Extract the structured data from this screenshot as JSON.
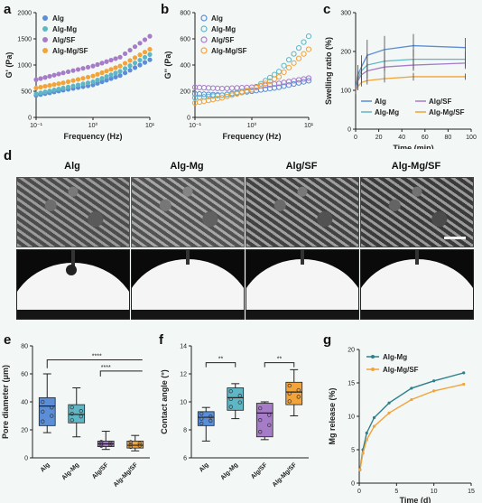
{
  "panels": {
    "a": "a",
    "b": "b",
    "c": "c",
    "d": "d",
    "e": "e",
    "f": "f",
    "g": "g"
  },
  "colors": {
    "Alg": "#5b8ed6",
    "Alg-Mg": "#5fb7c6",
    "Alg/SF": "#a67cc9",
    "Alg-Mg/SF": "#f2a33a",
    "g_Alg-Mg": "#2e7f8c",
    "g_Alg-Mg/SF": "#f2a33a"
  },
  "chart_data": [
    {
      "id": "a",
      "type": "scatter",
      "xlabel": "Frequency (Hz)",
      "ylabel": "G' (Pa)",
      "xscale": "log",
      "xlim": [
        0.1,
        10
      ],
      "ylim": [
        0,
        2000
      ],
      "xticks": [
        "10⁻¹",
        "10⁰",
        "10¹"
      ],
      "yticks": [
        "0",
        "500",
        "1000",
        "1500",
        "2000"
      ],
      "legend": "top-left",
      "series": [
        {
          "name": "Alg",
          "x": [
            0.1,
            0.3,
            1,
            3,
            10
          ],
          "y": [
            420,
            520,
            620,
            800,
            1100
          ]
        },
        {
          "name": "Alg-Mg",
          "x": [
            0.1,
            0.3,
            1,
            3,
            10
          ],
          "y": [
            450,
            560,
            680,
            880,
            1200
          ]
        },
        {
          "name": "Alg/SF",
          "x": [
            0.1,
            0.3,
            1,
            3,
            10
          ],
          "y": [
            720,
            850,
            980,
            1150,
            1550
          ]
        },
        {
          "name": "Alg-Mg/SF",
          "x": [
            0.1,
            0.3,
            1,
            3,
            10
          ],
          "y": [
            560,
            660,
            790,
            980,
            1300
          ]
        }
      ]
    },
    {
      "id": "b",
      "type": "scatter",
      "xlabel": "Frequency (Hz)",
      "ylabel": "G'' (Pa)",
      "xscale": "log",
      "xlim": [
        0.1,
        10
      ],
      "ylim": [
        0,
        800
      ],
      "xticks": [
        "10⁻¹",
        "10⁰",
        "10¹"
      ],
      "yticks": [
        "0",
        "200",
        "400",
        "600",
        "800"
      ],
      "legend": "top-left",
      "series": [
        {
          "name": "Alg",
          "x": [
            0.1,
            0.3,
            1,
            3,
            10
          ],
          "y": [
            180,
            170,
            200,
            230,
            280
          ]
        },
        {
          "name": "Alg-Mg",
          "x": [
            0.1,
            0.3,
            1,
            3,
            10
          ],
          "y": [
            150,
            170,
            210,
            350,
            620
          ]
        },
        {
          "name": "Alg/SF",
          "x": [
            0.1,
            0.3,
            1,
            3,
            10
          ],
          "y": [
            230,
            220,
            230,
            260,
            300
          ]
        },
        {
          "name": "Alg-Mg/SF",
          "x": [
            0.1,
            0.3,
            1,
            3,
            10
          ],
          "y": [
            110,
            150,
            210,
            310,
            520
          ]
        }
      ]
    },
    {
      "id": "c",
      "type": "line",
      "xlabel": "Time (min)",
      "ylabel": "Swelling ratio (%)",
      "xlim": [
        0,
        100
      ],
      "ylim": [
        0,
        300
      ],
      "xticks": [
        "0",
        "20",
        "40",
        "60",
        "80",
        "100"
      ],
      "yticks": [
        "0",
        "100",
        "200",
        "300"
      ],
      "legend": "bottom",
      "series": [
        {
          "name": "Alg",
          "x": [
            0,
            2,
            5,
            10,
            25,
            50,
            95
          ],
          "y": [
            100,
            140,
            160,
            190,
            205,
            215,
            210
          ],
          "err": [
            10,
            25,
            30,
            40,
            35,
            30,
            25
          ]
        },
        {
          "name": "Alg-Mg",
          "x": [
            0,
            2,
            5,
            10,
            25,
            50,
            95
          ],
          "y": [
            100,
            130,
            150,
            165,
            175,
            180,
            180
          ],
          "err": [
            10,
            20,
            25,
            30,
            25,
            25,
            20
          ]
        },
        {
          "name": "Alg/SF",
          "x": [
            0,
            2,
            5,
            10,
            25,
            50,
            95
          ],
          "y": [
            100,
            125,
            140,
            150,
            160,
            165,
            170
          ],
          "err": [
            8,
            15,
            20,
            20,
            20,
            15,
            15
          ]
        },
        {
          "name": "Alg-Mg/SF",
          "x": [
            0,
            2,
            5,
            10,
            25,
            50,
            95
          ],
          "y": [
            100,
            110,
            120,
            125,
            130,
            135,
            135
          ],
          "err": [
            5,
            10,
            10,
            10,
            10,
            10,
            8
          ]
        }
      ]
    },
    {
      "id": "e",
      "type": "box",
      "ylabel": "Pore diameter (μm)",
      "ylim": [
        0,
        80
      ],
      "yticks": [
        "0",
        "20",
        "40",
        "60",
        "80"
      ],
      "categories": [
        "Alg",
        "Alg-Mg",
        "Alg/SF",
        "Alg-Mg/SF"
      ],
      "boxes": [
        {
          "min": 18,
          "q1": 23,
          "median": 37,
          "q3": 43,
          "max": 60
        },
        {
          "min": 15,
          "q1": 25,
          "median": 31,
          "q3": 38,
          "max": 50
        },
        {
          "min": 6,
          "q1": 8,
          "median": 10,
          "q3": 12,
          "max": 19
        },
        {
          "min": 5,
          "q1": 7,
          "median": 9,
          "q3": 12,
          "max": 16
        }
      ],
      "annotations": [
        "****",
        "****"
      ]
    },
    {
      "id": "f",
      "type": "box",
      "ylabel": "Contact angle (°)",
      "ylim": [
        6,
        14
      ],
      "yticks": [
        "6",
        "8",
        "10",
        "12",
        "14"
      ],
      "categories": [
        "Alg",
        "Alg-Mg",
        "Alg/SF",
        "Alg-Mg/SF"
      ],
      "boxes": [
        {
          "min": 7.2,
          "q1": 8.3,
          "median": 8.9,
          "q3": 9.3,
          "max": 9.6
        },
        {
          "min": 8.8,
          "q1": 9.4,
          "median": 10.3,
          "q3": 11.0,
          "max": 11.3
        },
        {
          "min": 7.3,
          "q1": 7.5,
          "median": 9.2,
          "q3": 9.9,
          "max": 10.0
        },
        {
          "min": 9.0,
          "q1": 9.8,
          "median": 10.7,
          "q3": 11.4,
          "max": 12.3
        }
      ],
      "annotations": [
        "**",
        "**"
      ]
    },
    {
      "id": "g",
      "type": "line",
      "xlabel": "Time (d)",
      "ylabel": "Mg release (%)",
      "xlim": [
        0,
        15
      ],
      "ylim": [
        0,
        20
      ],
      "xticks": [
        "0",
        "5",
        "10",
        "15"
      ],
      "yticks": [
        "0",
        "5",
        "10",
        "15",
        "20"
      ],
      "legend": "top-left",
      "series": [
        {
          "name": "Alg-Mg",
          "x": [
            0.1,
            0.5,
            1,
            2,
            4,
            7,
            10,
            14
          ],
          "y": [
            2,
            5,
            7.5,
            9.8,
            12,
            14.2,
            15.3,
            16.5
          ]
        },
        {
          "name": "Alg-Mg/SF",
          "x": [
            0.1,
            0.5,
            1,
            2,
            4,
            7,
            10,
            14
          ],
          "y": [
            2,
            4.5,
            6.5,
            8.5,
            10.5,
            12.5,
            13.8,
            14.8
          ]
        }
      ]
    }
  ],
  "panel_d": {
    "labels": [
      "Alg",
      "Alg-Mg",
      "Alg/SF",
      "Alg-Mg/SF"
    ]
  }
}
